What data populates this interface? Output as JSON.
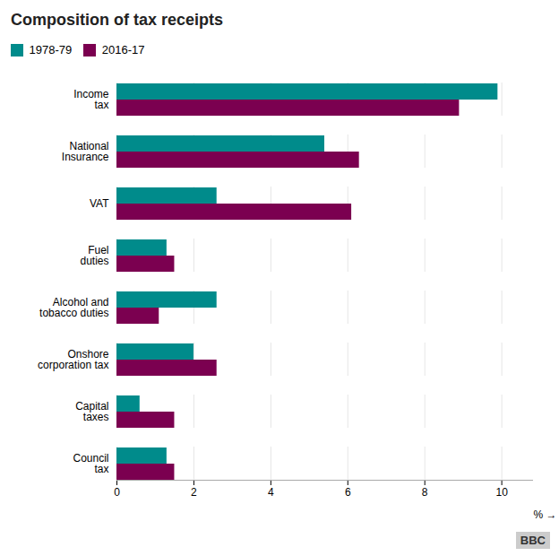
{
  "chart_data": {
    "type": "bar",
    "orientation": "horizontal",
    "title": "Composition of tax receipts",
    "categories": [
      "Income\ntax",
      "National\nInsurance",
      "VAT",
      "Fuel\nduties",
      "Alcohol and\ntobacco duties",
      "Onshore\ncorporation tax",
      "Capital\ntaxes",
      "Council\ntax"
    ],
    "series": [
      {
        "name": "1978-79",
        "color": "#008B8B",
        "values": [
          9.9,
          5.4,
          2.6,
          1.3,
          2.6,
          2.0,
          0.6,
          1.3
        ]
      },
      {
        "name": "2016-17",
        "color": "#7B0050",
        "values": [
          8.9,
          6.3,
          6.1,
          1.5,
          1.1,
          2.6,
          1.5,
          1.5
        ]
      }
    ],
    "xlim": [
      0,
      10.8
    ],
    "xticks": [
      0,
      2,
      4,
      6,
      8,
      10
    ],
    "xlabel": "%",
    "grid": true,
    "legend": "upper left",
    "annotations": [
      "BBC"
    ]
  }
}
